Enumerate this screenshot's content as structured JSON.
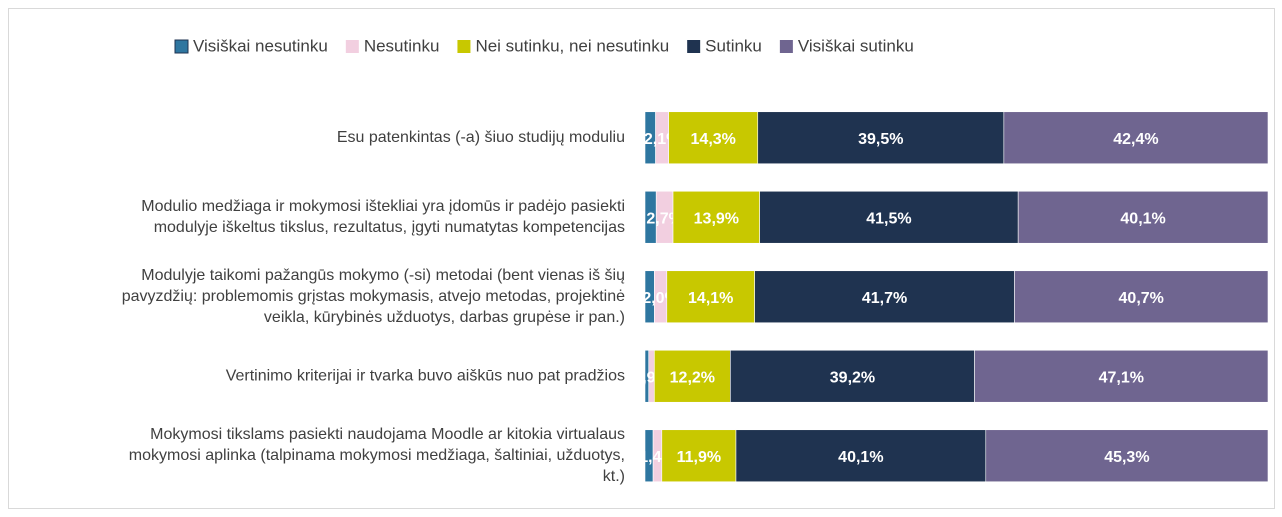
{
  "chart_data": {
    "type": "stacked-bar-horizontal",
    "categories": [
      [
        "Esu patenkintas (-a) šiuo studijų moduliu"
      ],
      [
        "Modulio medžiaga ir mokymosi ištekliai yra įdomūs ir padėjo pasiekti",
        "modulyje iškeltus tikslus, rezultatus, įgyti numatytas kompetencijas"
      ],
      [
        "Modulyje taikomi pažangūs mokymo (-si) metodai (bent vienas iš šių",
        "pavyzdžių: problemomis grįstas mokymasis, atvejo metodas, projektinė",
        "veikla, kūrybinės užduotys, darbas grupėse ir pan.)"
      ],
      [
        "Vertinimo kriterijai ir tvarka buvo aiškūs nuo pat pradžios"
      ],
      [
        "Mokymosi tikslams pasiekti naudojama Moodle ar kitokia virtualaus",
        "mokymosi aplinka (talpinama mokymosi medžiaga, šaltiniai, užduotys,",
        "kt.)"
      ]
    ],
    "series": [
      {
        "name": "Visiškai nesutinku",
        "color": "#2e76a0",
        "values": [
          1.7,
          1.8,
          1.5,
          0.6,
          1.3
        ]
      },
      {
        "name": "Nesutinku",
        "color": "#f2cfe0",
        "values": [
          2.1,
          2.7,
          2.0,
          0.9,
          1.4
        ],
        "value_labels": [
          "2,1%",
          "2,7%",
          "2,0%",
          "0,9%",
          "1,4%"
        ]
      },
      {
        "name": "Nei sutinku, nei nesutinku",
        "color": "#c8c800",
        "values": [
          14.3,
          13.9,
          14.1,
          12.2,
          11.9
        ],
        "value_labels": [
          "14,3%",
          "13,9%",
          "14,1%",
          "12,2%",
          "11,9%"
        ]
      },
      {
        "name": "Sutinku",
        "color": "#1f3350",
        "values": [
          39.5,
          41.5,
          41.7,
          39.2,
          40.1
        ],
        "value_labels": [
          "39,5%",
          "41,5%",
          "41,7%",
          "39,2%",
          "40,1%"
        ]
      },
      {
        "name": "Visiškai sutinku",
        "color": "#6f6590",
        "values": [
          42.4,
          40.1,
          40.7,
          47.1,
          45.3
        ],
        "value_labels": [
          "42,4%",
          "40,1%",
          "40,7%",
          "47,1%",
          "45,3%"
        ]
      }
    ]
  }
}
